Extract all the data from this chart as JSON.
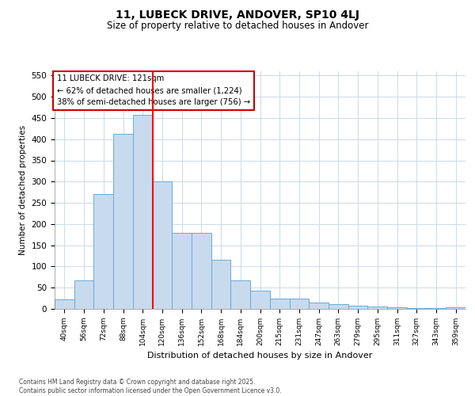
{
  "title1": "11, LUBECK DRIVE, ANDOVER, SP10 4LJ",
  "title2": "Size of property relative to detached houses in Andover",
  "xlabel": "Distribution of detached houses by size in Andover",
  "ylabel": "Number of detached properties",
  "categories": [
    "40sqm",
    "56sqm",
    "72sqm",
    "88sqm",
    "104sqm",
    "120sqm",
    "136sqm",
    "152sqm",
    "168sqm",
    "184sqm",
    "200sqm",
    "215sqm",
    "231sqm",
    "247sqm",
    "263sqm",
    "279sqm",
    "295sqm",
    "311sqm",
    "327sqm",
    "343sqm",
    "359sqm"
  ],
  "values": [
    22,
    67,
    270,
    413,
    457,
    300,
    180,
    180,
    115,
    67,
    43,
    25,
    25,
    15,
    12,
    7,
    6,
    3,
    2,
    1,
    4
  ],
  "bar_color": "#c8daee",
  "bar_edge_color": "#6aaad4",
  "red_line_index": 5,
  "annotation_title": "11 LUBECK DRIVE: 121sqm",
  "annotation_line1": "← 62% of detached houses are smaller (1,224)",
  "annotation_line2": "38% of semi-detached houses are larger (756) →",
  "annotation_box_edgecolor": "#cc0000",
  "ylim_max": 560,
  "yticks": [
    0,
    50,
    100,
    150,
    200,
    250,
    300,
    350,
    400,
    450,
    500,
    550
  ],
  "footnote1": "Contains HM Land Registry data © Crown copyright and database right 2025.",
  "footnote2": "Contains public sector information licensed under the Open Government Licence v3.0.",
  "bg_color": "#ffffff",
  "grid_color": "#d0dce8",
  "title_color": "#000000"
}
